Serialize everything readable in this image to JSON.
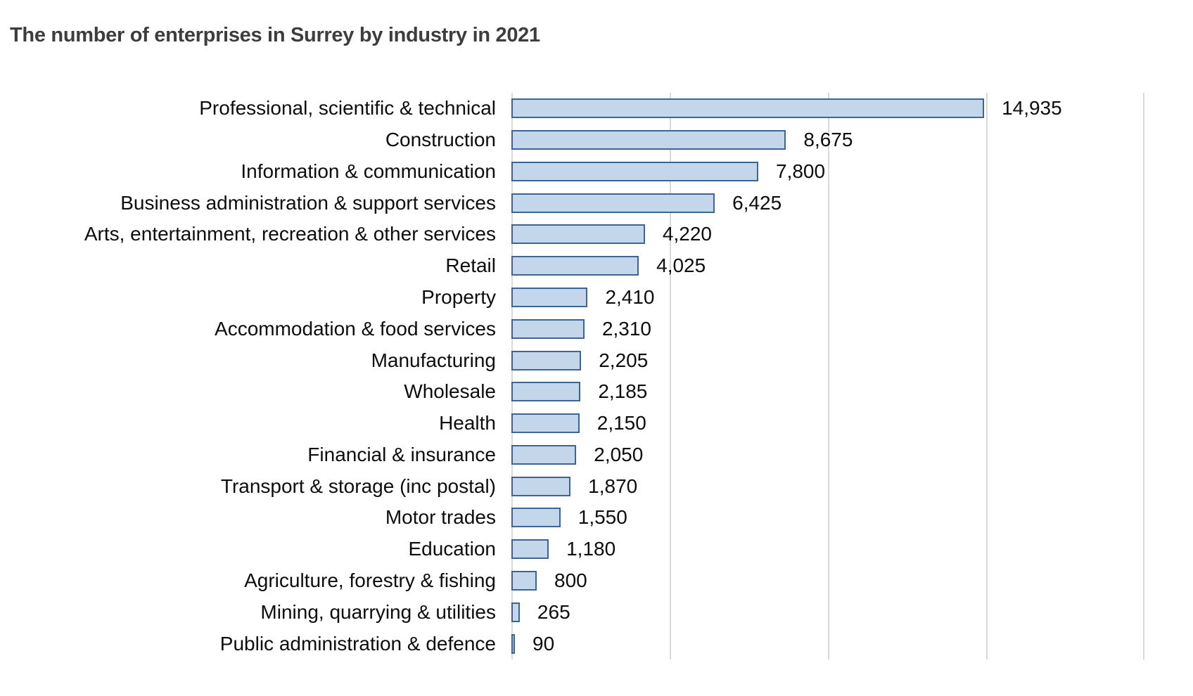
{
  "page": {
    "background": "#ffffff"
  },
  "chart_data": {
    "type": "bar",
    "orientation": "horizontal",
    "title": "The number of enterprises in Surrey by industry in 2021",
    "categories": [
      "Professional, scientific & technical",
      "Construction",
      "Information & communication",
      "Business administration & support services",
      "Arts, entertainment, recreation & other services",
      "Retail",
      "Property",
      "Accommodation & food services",
      "Manufacturing",
      "Wholesale",
      "Health",
      "Financial & insurance",
      "Transport & storage (inc postal)",
      "Motor trades",
      "Education",
      "Agriculture, forestry & fishing",
      "Mining, quarrying & utilities",
      "Public administration & defence"
    ],
    "values": [
      14935,
      8675,
      7800,
      6425,
      4220,
      4025,
      2410,
      2310,
      2205,
      2185,
      2150,
      2050,
      1870,
      1550,
      1180,
      800,
      265,
      90
    ],
    "value_labels": [
      "14,935",
      "8,675",
      "7,800",
      "6,425",
      "4,220",
      "4,025",
      "2,410",
      "2,310",
      "2,205",
      "2,185",
      "2,150",
      "2,050",
      "1,870",
      "1,550",
      "1,180",
      "800",
      "265",
      "90"
    ],
    "xlabel": "",
    "ylabel": "",
    "xlim": [
      0,
      20000
    ],
    "gridline_interval": 5000,
    "grid": true,
    "legend": false,
    "data_labels": "outside-end",
    "colors": {
      "bar_fill": "#c4d6ea",
      "bar_border": "#3d6493",
      "gridline": "#d9d9d9",
      "title_text": "#3d3d3d",
      "label_text": "#0d0d0d"
    }
  }
}
